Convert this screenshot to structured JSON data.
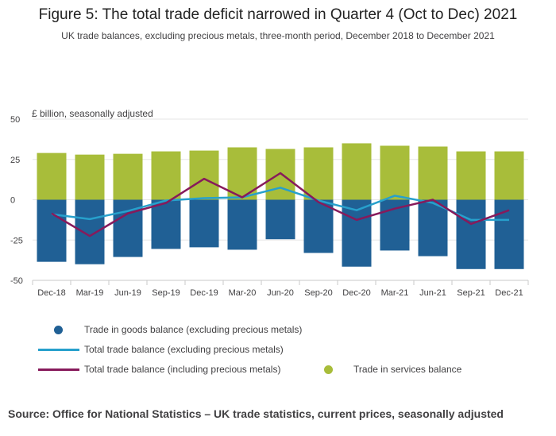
{
  "figure": {
    "title": "Figure 5: The total trade deficit narrowed in Quarter 4 (Oct to Dec) 2021",
    "subtitle": "UK trade balances, excluding precious metals, three-month period, December 2018 to December 2021",
    "source": "Source: Office for National Statistics – UK trade statistics, current prices, seasonally adjusted"
  },
  "colors": {
    "goods": "#206095",
    "services": "#a8bd3a",
    "total_excl": "#27a0cc",
    "total_incl": "#871a5b",
    "grid": "#e6e6e6",
    "axis": "#c9c9c9"
  },
  "chart_data": {
    "type": "bar",
    "stacked": true,
    "unit_label": "£ billion, seasonally adjusted",
    "categories": [
      "Dec-18",
      "Mar-19",
      "Jun-19",
      "Sep-19",
      "Dec-19",
      "Mar-20",
      "Jun-20",
      "Sep-20",
      "Dec-20",
      "Mar-21",
      "Jun-21",
      "Sep-21",
      "Dec-21"
    ],
    "ylim": [
      -50,
      50
    ],
    "yticks": [
      50,
      25,
      0,
      -25,
      -50
    ],
    "series": [
      {
        "name": "Trade in goods balance (excluding precious metals)",
        "kind": "bar",
        "values": [
          -38.5,
          -40,
          -35.5,
          -30.5,
          -29.5,
          -31,
          -24.5,
          -33,
          -41.5,
          -31.5,
          -35,
          -43,
          -43
        ]
      },
      {
        "name": "Trade in services balance",
        "kind": "bar",
        "values": [
          29,
          28,
          28.5,
          30,
          30.5,
          32.5,
          31.5,
          32.5,
          35,
          33.5,
          33,
          30,
          30
        ]
      },
      {
        "name": "Total trade balance (excluding precious metals)",
        "kind": "line",
        "values": [
          -9,
          -12,
          -7,
          -0.5,
          1,
          1.5,
          7.5,
          -0.5,
          -6.5,
          2.5,
          -2,
          -12.5,
          -12.5
        ]
      },
      {
        "name": "Total trade balance (including precious metals)",
        "kind": "line",
        "values": [
          -8.5,
          -22.5,
          -8.5,
          -2,
          13,
          1.5,
          16.5,
          -1.5,
          -12.5,
          -5.5,
          0,
          -15,
          -6.5
        ]
      }
    ]
  },
  "legend": {
    "goods": "Trade in goods balance (excluding precious metals)",
    "total_excl": "Total trade balance (excluding precious metals)",
    "total_incl": "Total trade balance (including precious metals)",
    "services": "Trade in services balance"
  }
}
